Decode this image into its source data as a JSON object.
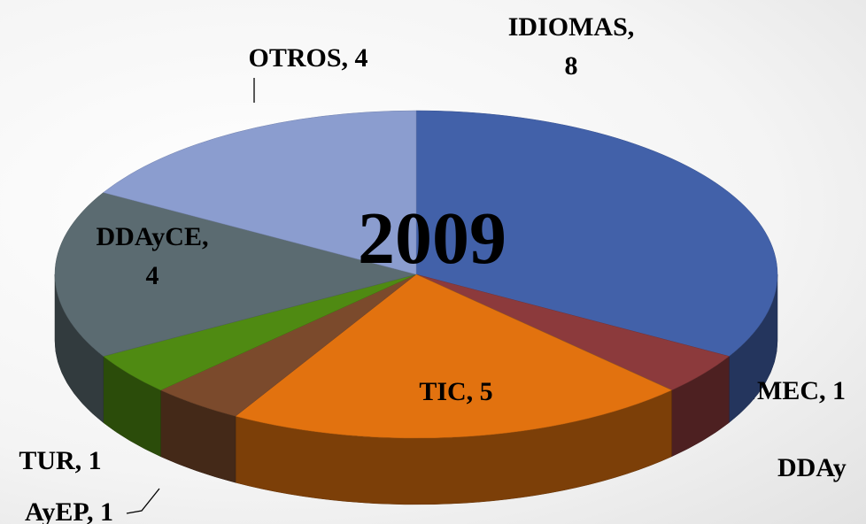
{
  "chart_data": {
    "type": "pie3d",
    "title": "2009",
    "categories": [
      "IDIOMAS",
      "MEC",
      "DDAy",
      "TIC",
      "AyEP",
      "TUR",
      "DDAyCE",
      "OTROS"
    ],
    "values": [
      8,
      1,
      0,
      5,
      1,
      1,
      4,
      4
    ],
    "value_labels": [
      "IDIOMAS, 8",
      "MEC, 1",
      "DDAy",
      "TIC, 5",
      "AyEP, 1",
      "TUR, 1",
      "DDAyCE, 4",
      "OTROS, 4"
    ],
    "colors": [
      "#4261a9",
      "#8c3a3c",
      "#5e7a2e",
      "#e2720f",
      "#7b4a2c",
      "#4f8a12",
      "#5b6b71",
      "#8b9dcf"
    ]
  }
}
